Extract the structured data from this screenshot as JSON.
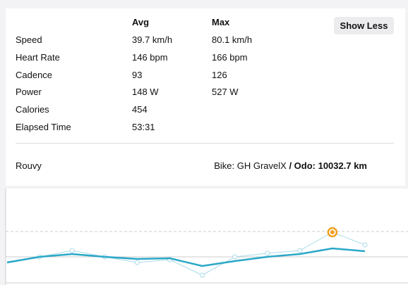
{
  "button": "Show Less",
  "table": {
    "columns": [
      "Avg",
      "Max"
    ],
    "rows": [
      [
        "Speed",
        "39.7 km/h",
        "80.1 km/h"
      ],
      [
        "Heart Rate",
        "146 bpm",
        "166 bpm"
      ],
      [
        "Cadence",
        "93",
        "126"
      ],
      [
        "Power",
        "148 W",
        "527 W"
      ],
      [
        "Calories",
        "454"
      ],
      [
        "Elapsed Time",
        "53:31"
      ]
    ]
  },
  "footer": {
    "source": "Rouvy",
    "bike": "Bike: GH GravelX",
    "odometer": "/ Odo: 10032.7 km"
  },
  "chart_data": {
    "type": "line",
    "ylim": [
      0,
      137
    ],
    "highlight": 10,
    "series": [
      {
        "color": "#a9dbe8",
        "values": [
          33,
          40,
          49,
          40,
          32,
          36,
          14,
          40,
          45,
          49,
          75,
          57
        ]
      },
      {
        "color": "#2aa8c8",
        "values": [
          32,
          40,
          44,
          40,
          37,
          38,
          27,
          34,
          40,
          44,
          52,
          48
        ]
      }
    ]
  }
}
